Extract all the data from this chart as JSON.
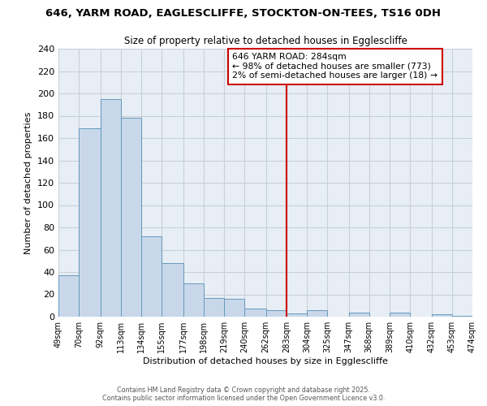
{
  "title": "646, YARM ROAD, EAGLESCLIFFE, STOCKTON-ON-TEES, TS16 0DH",
  "subtitle": "Size of property relative to detached houses in Egglescliffe",
  "xlabel": "Distribution of detached houses by size in Egglescliffe",
  "ylabel": "Number of detached properties",
  "bar_color": "#c8d8ea",
  "bar_edge_color": "#6699bb",
  "background_color": "#ffffff",
  "plot_bg_color": "#e8eef5",
  "grid_color": "#c8d0d8",
  "bins": [
    49,
    70,
    92,
    113,
    134,
    155,
    177,
    198,
    219,
    240,
    262,
    283,
    304,
    325,
    347,
    368,
    389,
    410,
    432,
    453,
    474
  ],
  "bin_labels": [
    "49sqm",
    "70sqm",
    "92sqm",
    "113sqm",
    "134sqm",
    "155sqm",
    "177sqm",
    "198sqm",
    "219sqm",
    "240sqm",
    "262sqm",
    "283sqm",
    "304sqm",
    "325sqm",
    "347sqm",
    "368sqm",
    "389sqm",
    "410sqm",
    "432sqm",
    "453sqm",
    "474sqm"
  ],
  "values": [
    37,
    169,
    195,
    178,
    72,
    48,
    30,
    17,
    16,
    7,
    6,
    3,
    6,
    0,
    4,
    0,
    4,
    0,
    2,
    1
  ],
  "vline_x": 283,
  "vline_color": "#cc0000",
  "annotation_title": "646 YARM ROAD: 284sqm",
  "annotation_line1": "← 98% of detached houses are smaller (773)",
  "annotation_line2": "2% of semi-detached houses are larger (18) →",
  "annotation_box_color": "#ffffff",
  "annotation_box_edge": "#cc0000",
  "footer1": "Contains HM Land Registry data © Crown copyright and database right 2025.",
  "footer2": "Contains public sector information licensed under the Open Government Licence v3.0.",
  "ylim": [
    0,
    240
  ],
  "yticks": [
    0,
    20,
    40,
    60,
    80,
    100,
    120,
    140,
    160,
    180,
    200,
    220,
    240
  ]
}
